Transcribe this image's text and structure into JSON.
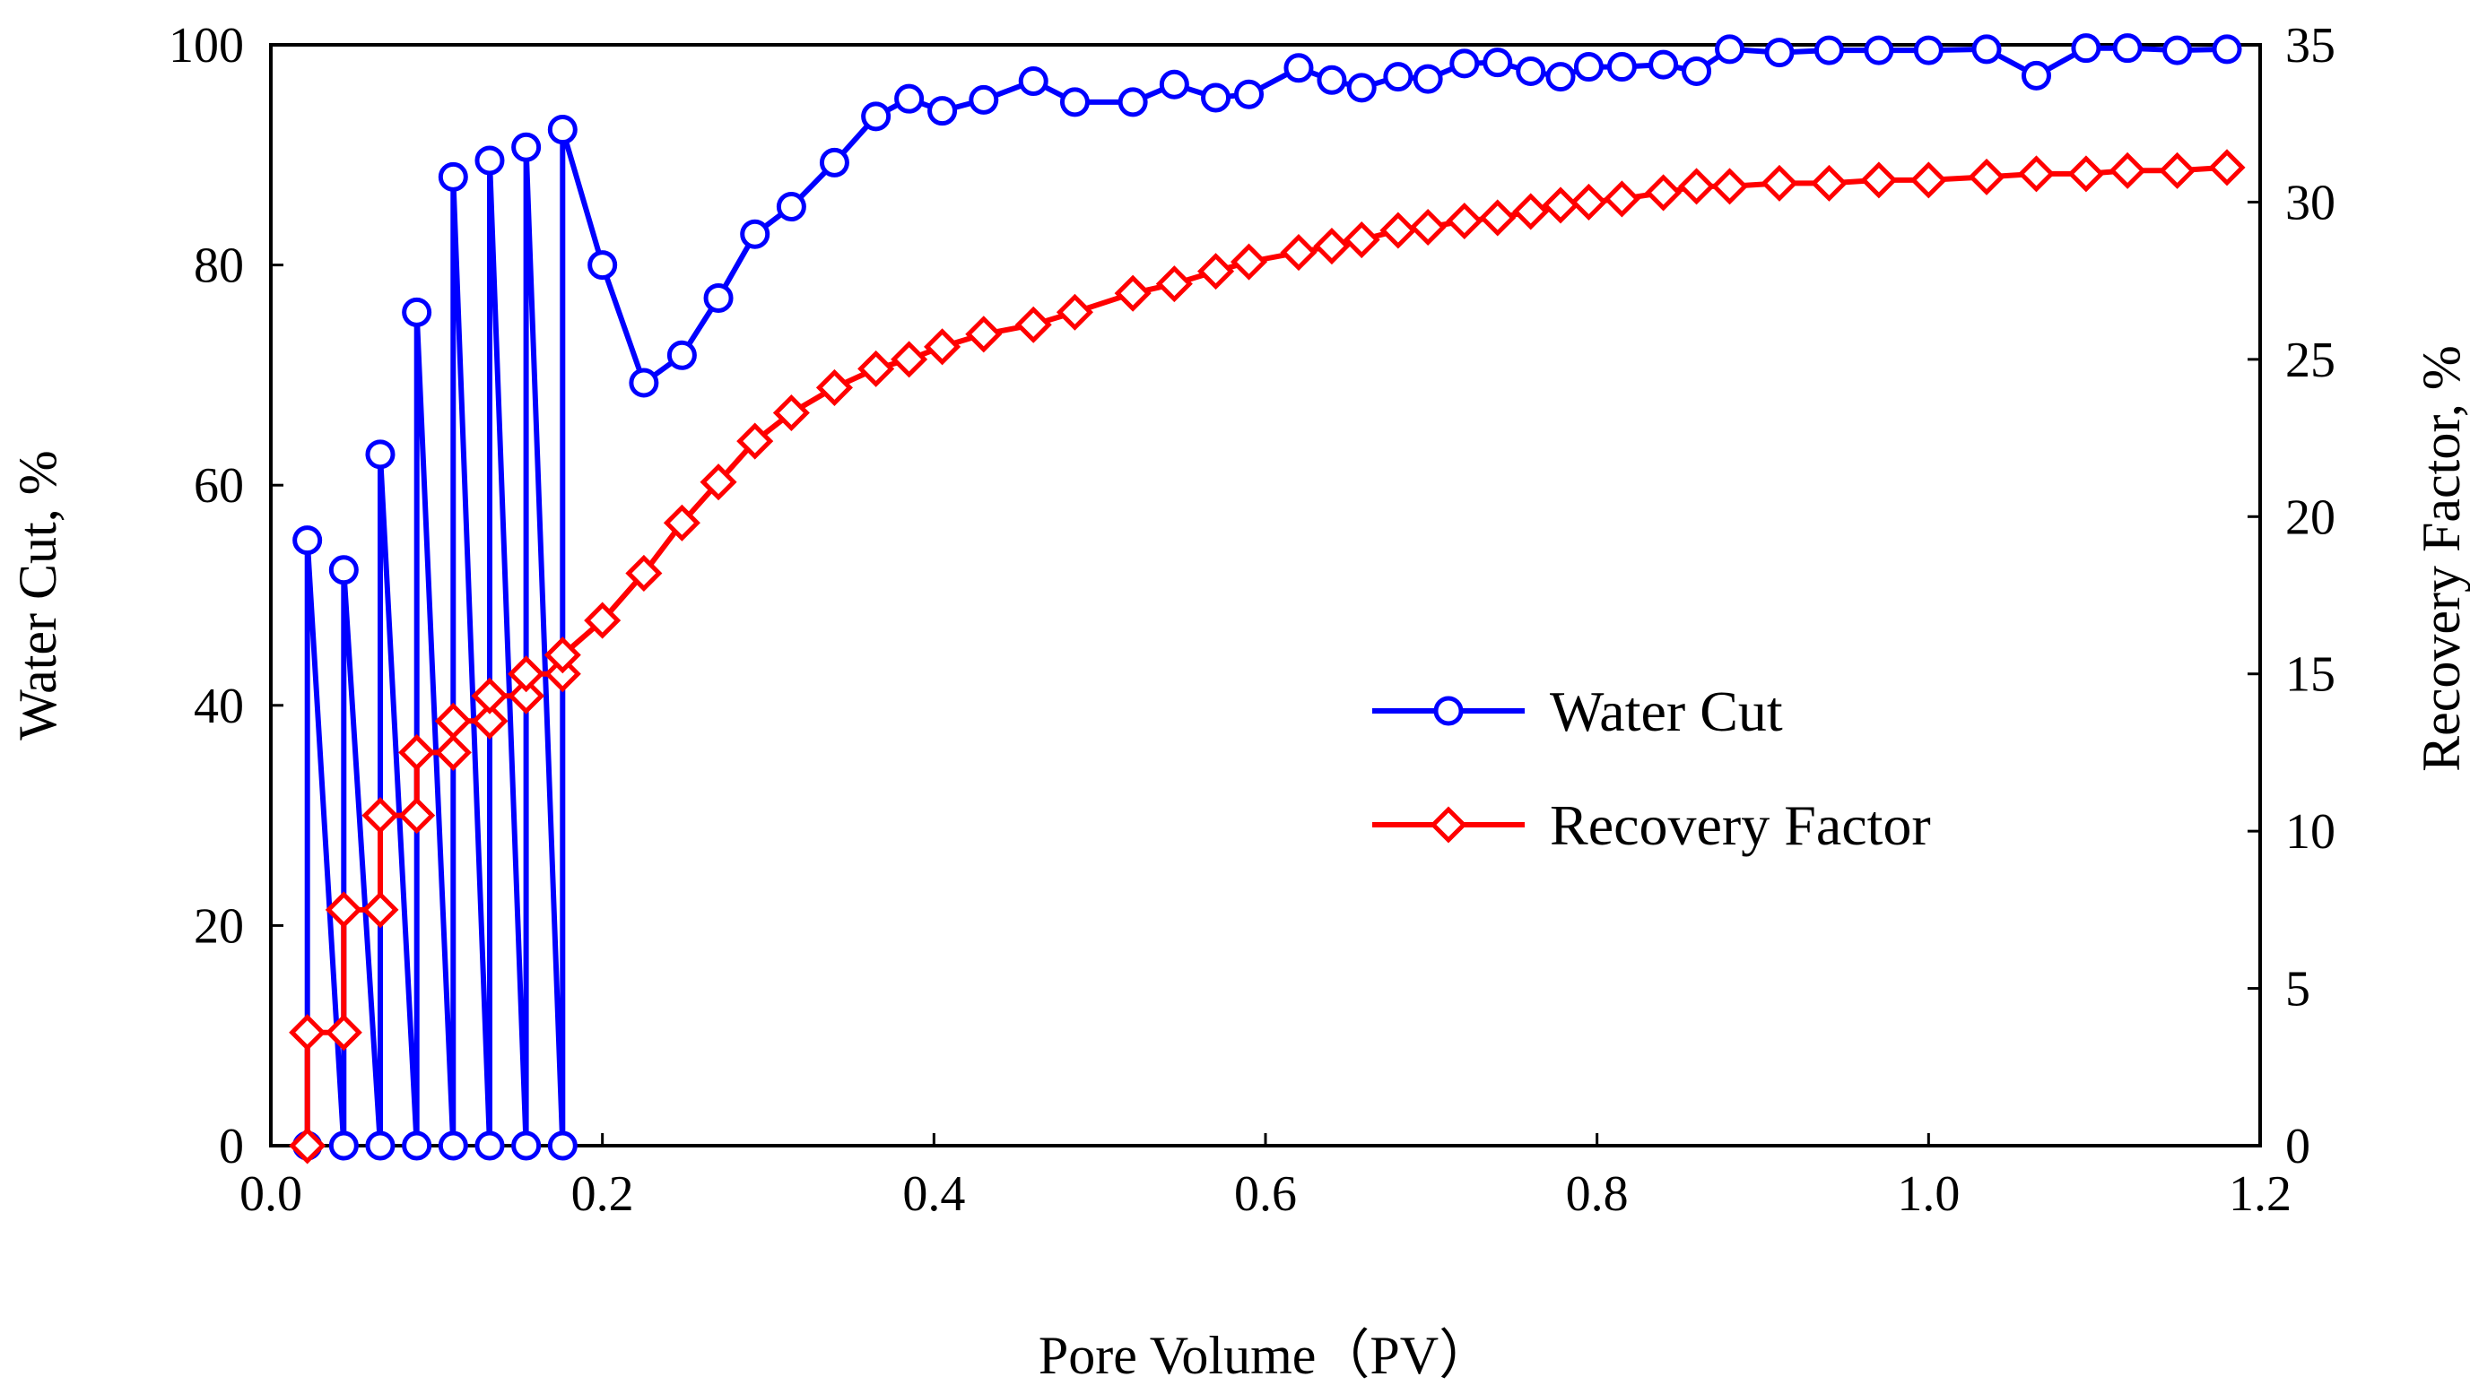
{
  "chart_data": {
    "type": "line",
    "title": "",
    "xlabel": "Pore Volume（PV）",
    "ylabel_left": "Water Cut, %",
    "ylabel_right": "Recovery Factor, %",
    "xlim": [
      0.0,
      1.2
    ],
    "ylim_left": [
      0,
      100
    ],
    "ylim_right": [
      0,
      35
    ],
    "x_ticks": [
      "0.0",
      "0.2",
      "0.4",
      "0.6",
      "0.8",
      "1.0",
      "1.2"
    ],
    "y_left_ticks": [
      "0",
      "20",
      "40",
      "60",
      "80",
      "100"
    ],
    "y_right_ticks": [
      "0",
      "5",
      "10",
      "15",
      "20",
      "25",
      "30",
      "35"
    ],
    "legend_position": "center-right",
    "series": [
      {
        "name": "Water Cut",
        "axis": "left",
        "color": "#0000ff",
        "marker": "circle",
        "x": [
          0.022,
          0.022,
          0.044,
          0.044,
          0.066,
          0.066,
          0.088,
          0.088,
          0.11,
          0.11,
          0.132,
          0.132,
          0.154,
          0.154,
          0.176,
          0.176,
          0.2,
          0.225,
          0.248,
          0.27,
          0.292,
          0.314,
          0.34,
          0.365,
          0.385,
          0.405,
          0.43,
          0.46,
          0.485,
          0.52,
          0.545,
          0.57,
          0.59,
          0.62,
          0.64,
          0.658,
          0.68,
          0.698,
          0.72,
          0.74,
          0.76,
          0.778,
          0.795,
          0.815,
          0.84,
          0.86,
          0.88,
          0.91,
          0.94,
          0.97,
          1.0,
          1.035,
          1.065,
          1.095,
          1.12,
          1.15,
          1.18
        ],
        "y": [
          0,
          55,
          0,
          52.3,
          0,
          62.8,
          0,
          75.7,
          0,
          88,
          0,
          89.5,
          0,
          90.7,
          0,
          92.3,
          80,
          69.3,
          71.8,
          77,
          82.8,
          85.3,
          89.3,
          93.5,
          95.1,
          94,
          95,
          96.7,
          94.8,
          94.8,
          96.4,
          95.2,
          95.5,
          97.9,
          96.8,
          96.1,
          97.1,
          96.9,
          98.3,
          98.4,
          97.6,
          97.1,
          98,
          98,
          98.2,
          97.6,
          99.6,
          99.3,
          99.5,
          99.5,
          99.5,
          99.6,
          97.2,
          99.7,
          99.7,
          99.5,
          99.6
        ]
      },
      {
        "name": "Recovery Factor",
        "axis": "right",
        "color": "#ff0000",
        "marker": "diamond",
        "x": [
          0.022,
          0.022,
          0.044,
          0.044,
          0.066,
          0.066,
          0.088,
          0.088,
          0.11,
          0.11,
          0.132,
          0.132,
          0.154,
          0.154,
          0.176,
          0.176,
          0.2,
          0.225,
          0.248,
          0.27,
          0.292,
          0.314,
          0.34,
          0.365,
          0.385,
          0.405,
          0.43,
          0.46,
          0.485,
          0.52,
          0.545,
          0.57,
          0.59,
          0.62,
          0.64,
          0.658,
          0.68,
          0.698,
          0.72,
          0.74,
          0.76,
          0.778,
          0.795,
          0.815,
          0.84,
          0.86,
          0.88,
          0.91,
          0.94,
          0.97,
          1.0,
          1.035,
          1.065,
          1.095,
          1.12,
          1.15,
          1.18
        ],
        "y": [
          0,
          3.6,
          3.6,
          7.5,
          7.5,
          10.5,
          10.5,
          12.5,
          12.5,
          13.5,
          13.5,
          14.3,
          14.3,
          15,
          15,
          15.6,
          16.7,
          18.2,
          19.8,
          21.1,
          22.4,
          23.3,
          24.1,
          24.7,
          25,
          25.4,
          25.8,
          26.1,
          26.5,
          27.1,
          27.4,
          27.8,
          28.1,
          28.4,
          28.6,
          28.8,
          29.1,
          29.2,
          29.4,
          29.5,
          29.7,
          29.9,
          30,
          30.1,
          30.3,
          30.5,
          30.5,
          30.6,
          30.6,
          30.7,
          30.7,
          30.8,
          30.9,
          30.9,
          31,
          31,
          31.1
        ]
      }
    ]
  }
}
